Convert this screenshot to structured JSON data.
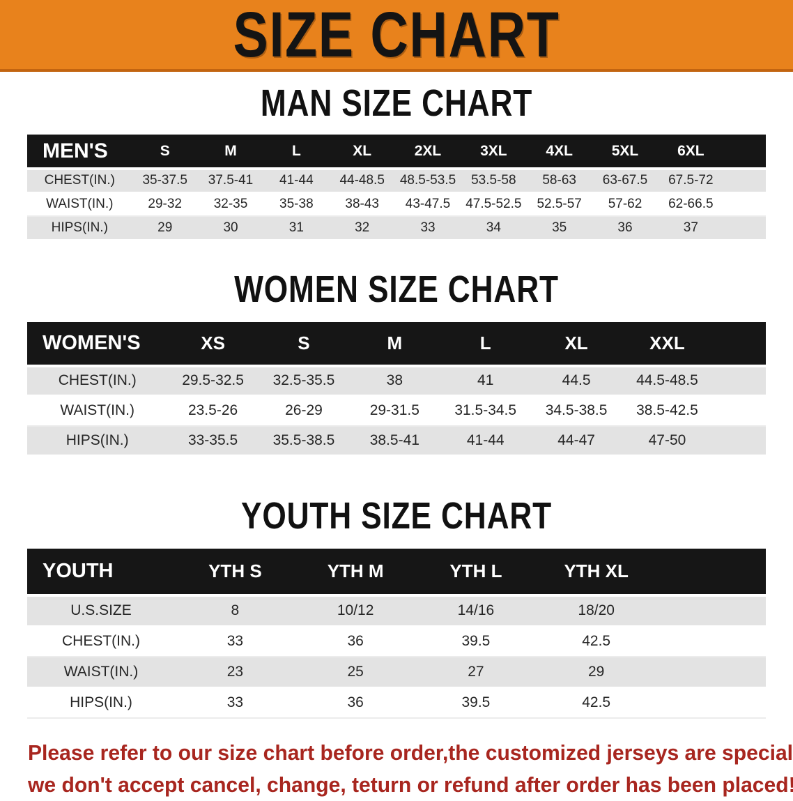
{
  "banner": {
    "title": "SIZE CHART"
  },
  "colors": {
    "banner_bg": "#E8821C",
    "banner_edge": "#C26410",
    "table_header_bg": "#161616",
    "row_stripe": "#E3E3E3",
    "disclaimer_text": "#A8261F"
  },
  "chart_data": [
    {
      "type": "table",
      "title": "MAN SIZE CHART",
      "columns": [
        "MEN'S",
        "S",
        "M",
        "L",
        "XL",
        "2XL",
        "3XL",
        "4XL",
        "5XL",
        "6XL"
      ],
      "rows": [
        [
          "CHEST(IN.)",
          "35-37.5",
          "37.5-41",
          "41-44",
          "44-48.5",
          "48.5-53.5",
          "53.5-58",
          "58-63",
          "63-67.5",
          "67.5-72"
        ],
        [
          "WAIST(IN.)",
          "29-32",
          "32-35",
          "35-38",
          "38-43",
          "43-47.5",
          "47.5-52.5",
          "52.5-57",
          "57-62",
          "62-66.5"
        ],
        [
          "HIPS(IN.)",
          "29",
          "30",
          "31",
          "32",
          "33",
          "34",
          "35",
          "36",
          "37"
        ]
      ]
    },
    {
      "type": "table",
      "title": "WOMEN SIZE CHART",
      "columns": [
        "WOMEN'S",
        "XS",
        "S",
        "M",
        "L",
        "XL",
        "XXL"
      ],
      "rows": [
        [
          "CHEST(IN.)",
          "29.5-32.5",
          "32.5-35.5",
          "38",
          "41",
          "44.5",
          "44.5-48.5"
        ],
        [
          "WAIST(IN.)",
          "23.5-26",
          "26-29",
          "29-31.5",
          "31.5-34.5",
          "34.5-38.5",
          "38.5-42.5"
        ],
        [
          "HIPS(IN.)",
          "33-35.5",
          "35.5-38.5",
          "38.5-41",
          "41-44",
          "44-47",
          "47-50"
        ]
      ]
    },
    {
      "type": "table",
      "title": "YOUTH SIZE CHART",
      "columns": [
        "YOUTH",
        "YTH S",
        "YTH M",
        "YTH L",
        "YTH XL"
      ],
      "rows": [
        [
          "U.S.SIZE",
          "8",
          "10/12",
          "14/16",
          "18/20"
        ],
        [
          "CHEST(IN.)",
          "33",
          "36",
          "39.5",
          "42.5"
        ],
        [
          "WAIST(IN.)",
          "23",
          "25",
          "27",
          "29"
        ],
        [
          "HIPS(IN.)",
          "33",
          "36",
          "39.5",
          "42.5"
        ]
      ]
    }
  ],
  "disclaimer": {
    "line1": "Please refer to our size chart before order,the customized jerseys are special products,",
    "line2": "we don't accept cancel, change, teturn or refund after order has been placed!"
  }
}
